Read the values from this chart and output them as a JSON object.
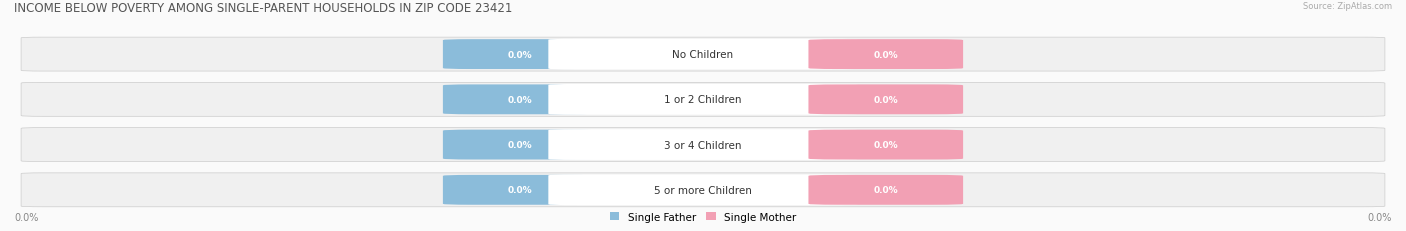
{
  "title": "INCOME BELOW POVERTY AMONG SINGLE-PARENT HOUSEHOLDS IN ZIP CODE 23421",
  "source": "Source: ZipAtlas.com",
  "categories": [
    "No Children",
    "1 or 2 Children",
    "3 or 4 Children",
    "5 or more Children"
  ],
  "single_father_values": [
    0.0,
    0.0,
    0.0,
    0.0
  ],
  "single_mother_values": [
    0.0,
    0.0,
    0.0,
    0.0
  ],
  "father_color": "#8BBCDA",
  "mother_color": "#F2A0B4",
  "bar_bg_color": "#EFEFEF",
  "bar_border_color": "#CCCCCC",
  "title_color": "#555555",
  "label_fontsize": 7.5,
  "title_fontsize": 8.5,
  "x_left_label": "0.0%",
  "x_right_label": "0.0%",
  "legend_father": "Single Father",
  "legend_mother": "Single Mother",
  "background_color": "#FAFAFA",
  "center_label_bg": "#FFFFFF",
  "row_bg_color": "#F0F0F0",
  "row_separator_color": "#E0E0E0"
}
